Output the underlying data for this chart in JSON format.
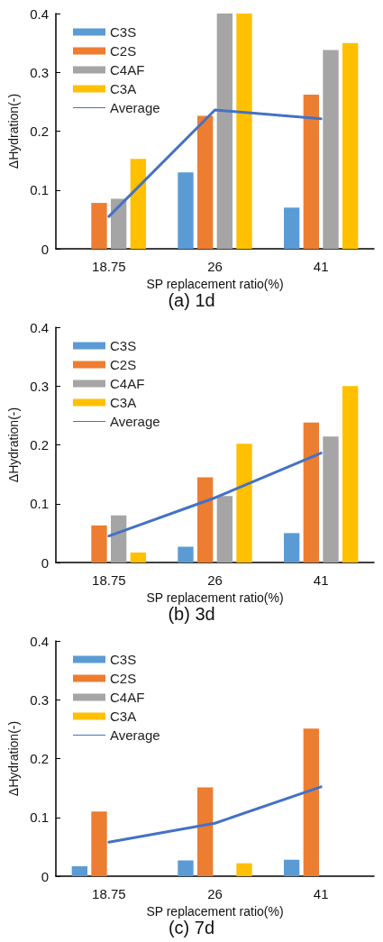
{
  "chart_data": [
    {
      "type": "bar",
      "title": "(a) 1d",
      "xlabel": "SP replacement ratio(%)",
      "ylabel": "ΔHydration(-)",
      "categories": [
        "18.75",
        "26",
        "41"
      ],
      "ylim": [
        0,
        0.4
      ],
      "yticks": [
        0,
        0.1,
        0.2,
        0.3,
        0.4
      ],
      "grid": false,
      "legend": "top left",
      "marker": "none",
      "series": [
        {
          "name": "C3S",
          "color": "#5b9bd5",
          "values": [
            null,
            0.13,
            0.07
          ]
        },
        {
          "name": "C2S",
          "color": "#ed7d31",
          "values": [
            0.078,
            0.226,
            0.262
          ]
        },
        {
          "name": "C4AF",
          "color": "#a5a5a5",
          "values": [
            0.085,
            0.4,
            0.338
          ]
        },
        {
          "name": "C3A",
          "color": "#ffc000",
          "values": [
            0.153,
            0.4,
            0.35
          ]
        },
        {
          "name": "Average",
          "type": "line",
          "color": "#4472c4",
          "values": [
            0.055,
            0.236,
            0.221
          ]
        }
      ]
    },
    {
      "type": "bar",
      "title": "(b) 3d",
      "xlabel": "SP replacement ratio(%)",
      "ylabel": "ΔHydration(-)",
      "categories": [
        "18.75",
        "26",
        "41"
      ],
      "ylim": [
        0,
        0.4
      ],
      "yticks": [
        0,
        0.1,
        0.2,
        0.3,
        0.4
      ],
      "grid": false,
      "legend": "top left",
      "marker": "none",
      "series": [
        {
          "name": "C3S",
          "color": "#5b9bd5",
          "values": [
            null,
            0.027,
            0.05
          ]
        },
        {
          "name": "C2S",
          "color": "#ed7d31",
          "values": [
            0.063,
            0.145,
            0.238
          ]
        },
        {
          "name": "C4AF",
          "color": "#a5a5a5",
          "values": [
            0.08,
            0.113,
            0.214
          ]
        },
        {
          "name": "C3A",
          "color": "#ffc000",
          "values": [
            0.017,
            0.202,
            0.3
          ]
        },
        {
          "name": "Average",
          "type": "line",
          "color": "#4472c4",
          "values": [
            0.045,
            0.11,
            0.186
          ]
        }
      ]
    },
    {
      "type": "bar",
      "title": "(c) 7d",
      "xlabel": "SP replacement ratio(%)",
      "ylabel": "ΔHydration(-)",
      "categories": [
        "18.75",
        "26",
        "41"
      ],
      "ylim": [
        0,
        0.4
      ],
      "yticks": [
        0,
        0.1,
        0.2,
        0.3,
        0.4
      ],
      "grid": false,
      "legend": "top left",
      "marker": "none",
      "series": [
        {
          "name": "C3S",
          "color": "#5b9bd5",
          "values": [
            0.017,
            0.027,
            0.028
          ]
        },
        {
          "name": "C2S",
          "color": "#ed7d31",
          "values": [
            0.11,
            0.151,
            0.251
          ]
        },
        {
          "name": "C4AF",
          "color": "#a5a5a5",
          "values": [
            null,
            null,
            null
          ]
        },
        {
          "name": "C3A",
          "color": "#ffc000",
          "values": [
            null,
            0.022,
            null
          ]
        },
        {
          "name": "Average",
          "type": "line",
          "color": "#4472c4",
          "values": [
            0.058,
            0.09,
            0.152
          ]
        }
      ]
    }
  ]
}
